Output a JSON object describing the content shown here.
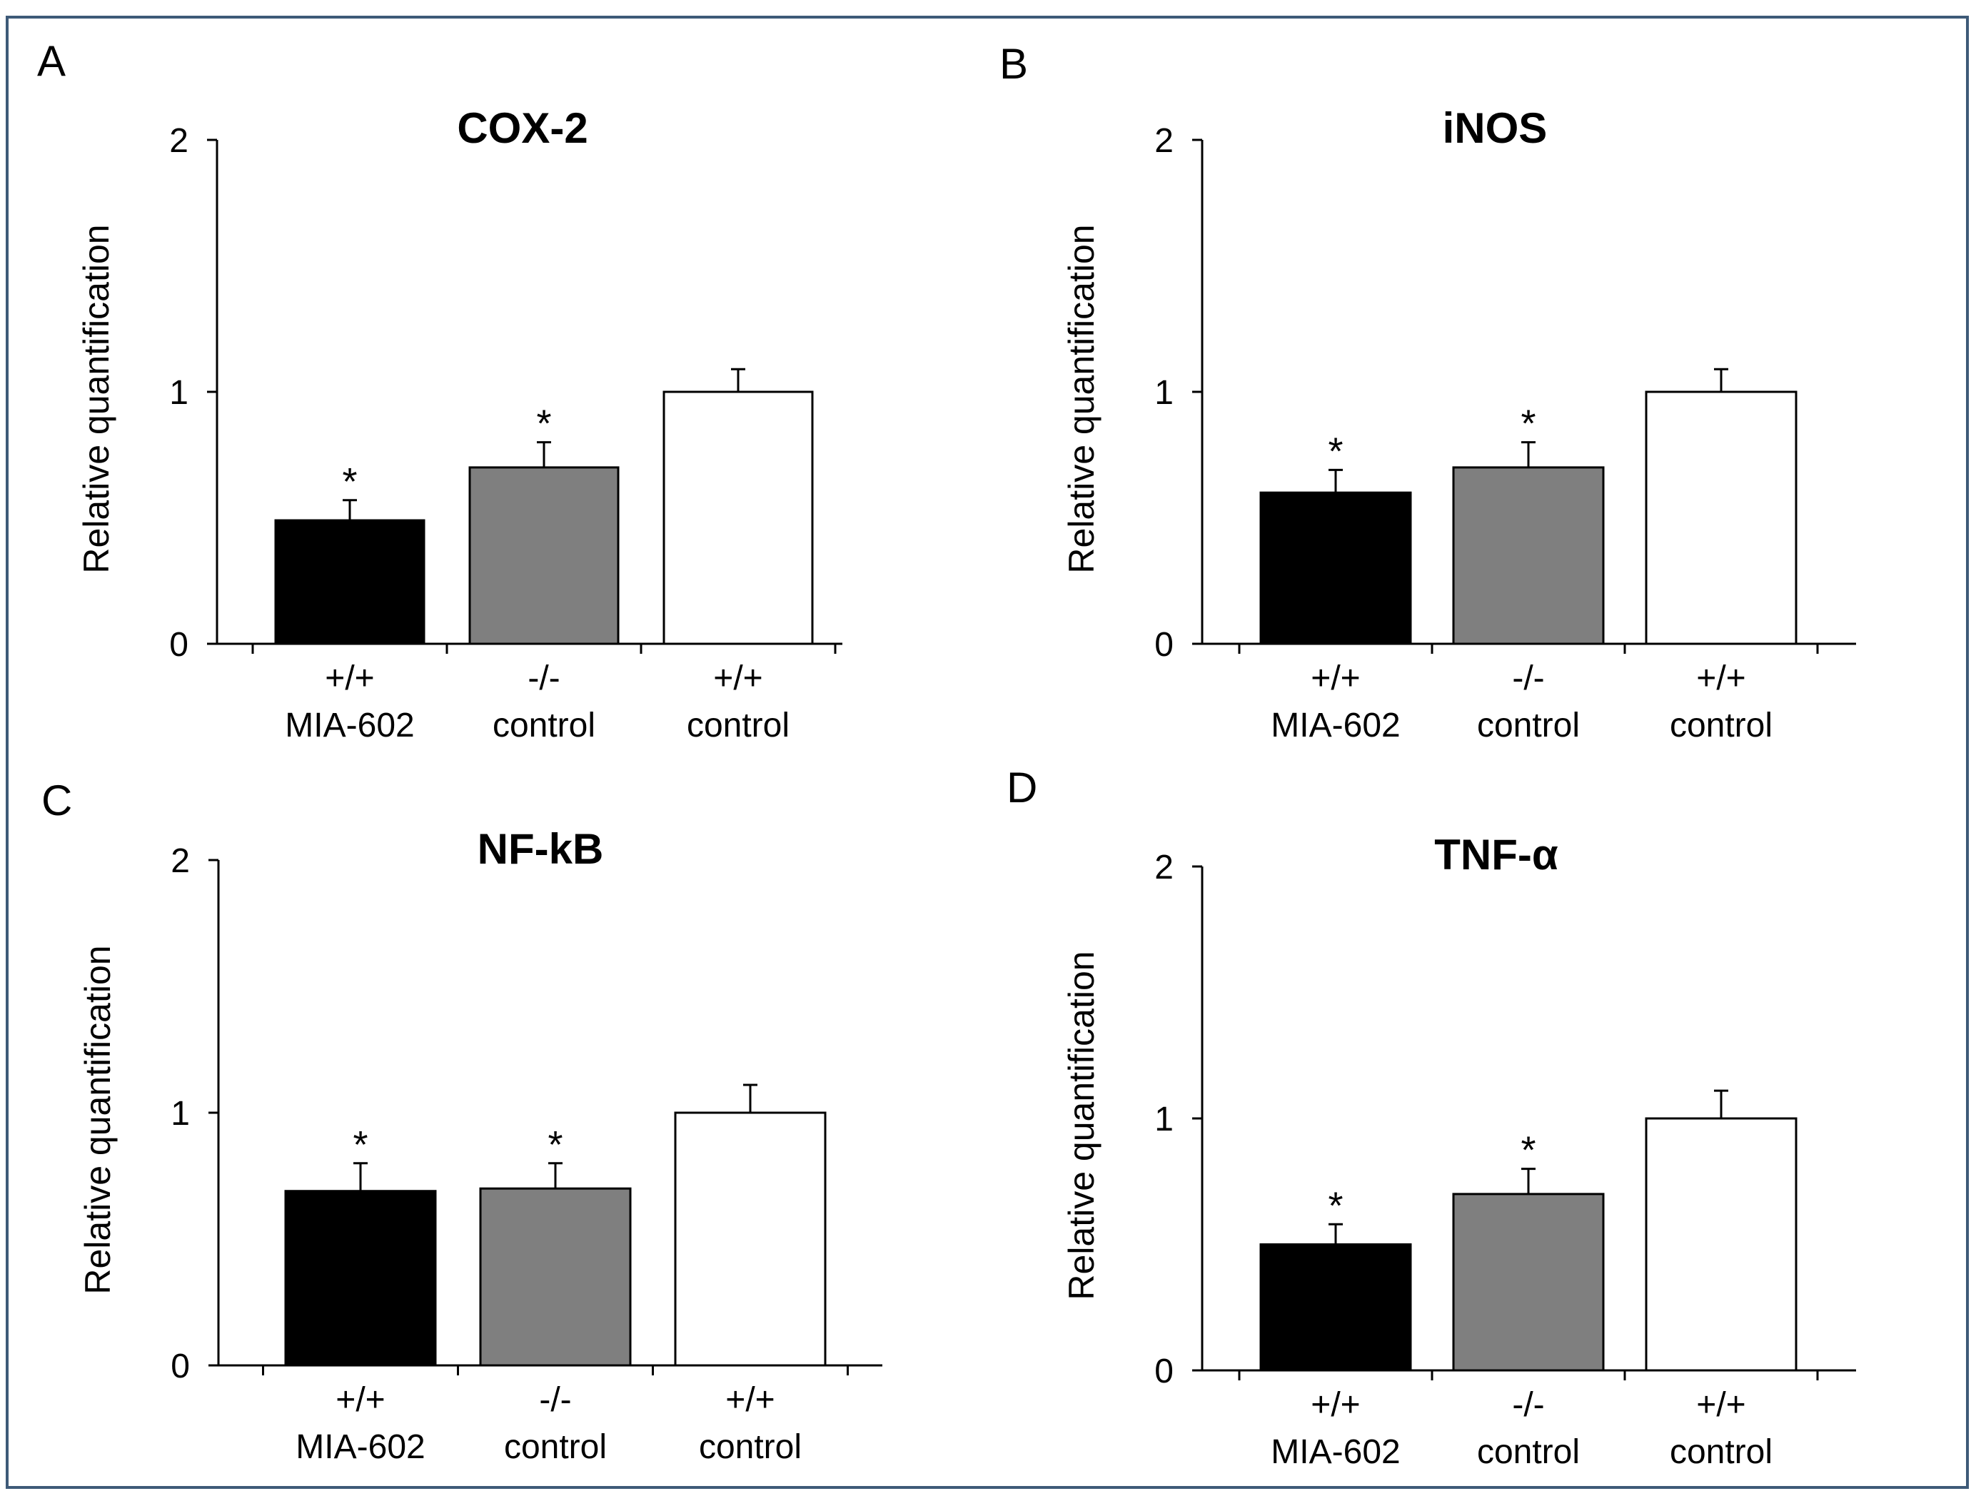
{
  "figure": {
    "border_color": "#3e5a78",
    "colors": {
      "black": "#000000",
      "gray": "#7f7f7f",
      "white": "#ffffff"
    }
  },
  "chart_data": [
    {
      "panel": "A",
      "type": "bar",
      "title": "COX-2",
      "ylabel": "Relative quantification",
      "xlabel": "",
      "ylim": [
        0,
        2
      ],
      "yticks": [
        "0",
        "1",
        "2"
      ],
      "grid": false,
      "categories": [
        {
          "line1": "+/+",
          "line2": "MIA-602"
        },
        {
          "line1": "-/-",
          "line2": "control"
        },
        {
          "line1": "+/+",
          "line2": "control"
        }
      ],
      "values": [
        0.49,
        0.7,
        1.0
      ],
      "errors": [
        0.08,
        0.1,
        0.09
      ],
      "significance": [
        "*",
        "*",
        ""
      ],
      "bar_colors": [
        "#000000",
        "#7f7f7f",
        "#ffffff"
      ]
    },
    {
      "panel": "B",
      "type": "bar",
      "title": "iNOS",
      "ylabel": "Relative quantification",
      "xlabel": "",
      "ylim": [
        0,
        2
      ],
      "yticks": [
        "0",
        "1",
        "2"
      ],
      "grid": false,
      "categories": [
        {
          "line1": "+/+",
          "line2": "MIA-602"
        },
        {
          "line1": "-/-",
          "line2": "control"
        },
        {
          "line1": "+/+",
          "line2": "control"
        }
      ],
      "values": [
        0.6,
        0.7,
        1.0
      ],
      "errors": [
        0.09,
        0.1,
        0.09
      ],
      "significance": [
        "*",
        "*",
        ""
      ],
      "bar_colors": [
        "#000000",
        "#7f7f7f",
        "#ffffff"
      ]
    },
    {
      "panel": "C",
      "type": "bar",
      "title": "NF-kB",
      "ylabel": "Relative quantification",
      "xlabel": "",
      "ylim": [
        0,
        2
      ],
      "yticks": [
        "0",
        "1",
        "2"
      ],
      "grid": false,
      "categories": [
        {
          "line1": "+/+",
          "line2": "MIA-602"
        },
        {
          "line1": "-/-",
          "line2": "control"
        },
        {
          "line1": "+/+",
          "line2": "control"
        }
      ],
      "values": [
        0.69,
        0.7,
        1.0
      ],
      "errors": [
        0.11,
        0.1,
        0.11
      ],
      "significance": [
        "*",
        "*",
        ""
      ],
      "bar_colors": [
        "#000000",
        "#7f7f7f",
        "#ffffff"
      ]
    },
    {
      "panel": "D",
      "type": "bar",
      "title": "TNF-α",
      "ylabel": "Relative quantification",
      "xlabel": "",
      "ylim": [
        0,
        2
      ],
      "yticks": [
        "0",
        "1",
        "2"
      ],
      "grid": false,
      "categories": [
        {
          "line1": "+/+",
          "line2": "MIA-602"
        },
        {
          "line1": "-/-",
          "line2": "control"
        },
        {
          "line1": "+/+",
          "line2": "control"
        }
      ],
      "values": [
        0.5,
        0.7,
        1.0
      ],
      "errors": [
        0.08,
        0.1,
        0.11
      ],
      "significance": [
        "*",
        "*",
        ""
      ],
      "bar_colors": [
        "#000000",
        "#7f7f7f",
        "#ffffff"
      ]
    }
  ]
}
